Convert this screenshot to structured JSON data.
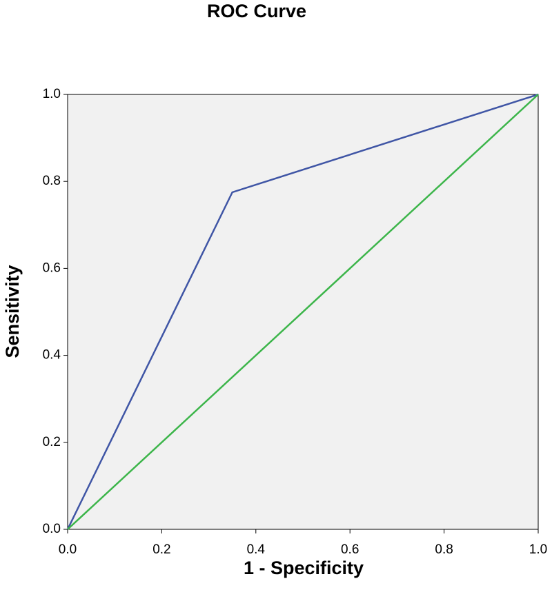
{
  "chart_data": {
    "type": "line",
    "title": "ROC Curve",
    "x_label": "1 - Specificity",
    "y_label": "Sensitivity",
    "series": [
      {
        "color": "#3f55a5",
        "x": [
          0,
          0.35,
          1
        ],
        "values": [
          0,
          0.775,
          1
        ]
      },
      {
        "color": "#3cb54a",
        "x": [
          0,
          1
        ],
        "values": [
          0,
          1
        ]
      }
    ],
    "xlim": [
      0,
      1
    ],
    "ylim": [
      0,
      1
    ],
    "xticks": [
      {
        "value": 0,
        "label": "0.0"
      },
      {
        "value": 0.2,
        "label": "0.2"
      },
      {
        "value": 0.4,
        "label": "0.4"
      },
      {
        "value": 0.6,
        "label": "0.6"
      },
      {
        "value": 0.8,
        "label": "0.8"
      },
      {
        "value": 1,
        "label": "1.0"
      }
    ],
    "yticks": [
      {
        "value": 0,
        "label": "0.0"
      },
      {
        "value": 0.2,
        "label": "0.2"
      },
      {
        "value": 0.4,
        "label": "0.4"
      },
      {
        "value": 0.6,
        "label": "0.6"
      },
      {
        "value": 0.8,
        "label": "0.8"
      },
      {
        "value": 1,
        "label": "1.0"
      }
    ],
    "grid": false,
    "background": "#f1f1f1"
  }
}
